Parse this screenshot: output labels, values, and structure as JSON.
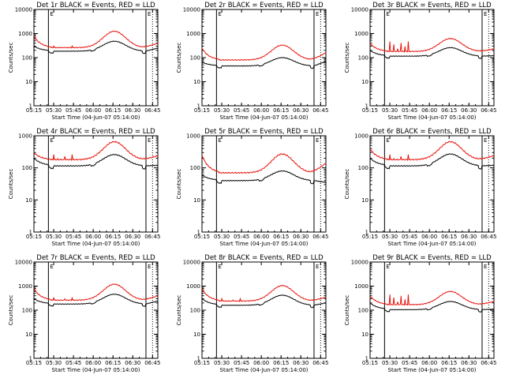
{
  "colors": {
    "events": "#000000",
    "lld": "#e8140c",
    "axes": "#000000",
    "background": "#ffffff"
  },
  "common": {
    "xlabel": "Start Time (04-Jun-07 05:14:00)",
    "ylabel": "Counts/sec",
    "x_tick_labels": [
      "05:15",
      "05:30",
      "05:45",
      "06:00",
      "06:15",
      "06:30",
      "06:45"
    ],
    "x_tick_minutes": [
      1,
      16,
      31,
      46,
      61,
      76,
      91
    ],
    "x_range_minutes": [
      1,
      95
    ],
    "y_scale": "log",
    "y_tick_labels": [
      "1",
      "10",
      "100",
      "1000",
      "10000"
    ],
    "y_tick_values": [
      1,
      10,
      100,
      1000,
      10000
    ],
    "markers_minutes": [
      12,
      86,
      91
    ],
    "marker_flag_label": "E"
  },
  "chart_data": [
    {
      "type": "line",
      "title": "Det 1r BLACK = Events, RED = LLD",
      "ylim": [
        1,
        10000
      ],
      "peak_lld": 1250,
      "base_lld": 260,
      "early_lld": 800,
      "peak_events": 480,
      "base_events": 185,
      "early_events": 300,
      "has_spikes": true,
      "spike_height": 300,
      "lld_end": 400,
      "events_end": 250
    },
    {
      "type": "line",
      "title": "Det 2r BLACK = Events, RED = LLD",
      "ylim": [
        1,
        10000
      ],
      "peak_lld": 330,
      "base_lld": 80,
      "early_lld": 250,
      "peak_events": 100,
      "base_events": 45,
      "early_events": 65,
      "has_spikes": false,
      "spike_height": 0,
      "lld_end": 160,
      "events_end": 70
    },
    {
      "type": "line",
      "title": "Det 3r BLACK = Events, RED = LLD",
      "ylim": [
        1,
        10000
      ],
      "peak_lld": 620,
      "base_lld": 180,
      "early_lld": 400,
      "peak_events": 260,
      "base_events": 115,
      "early_events": 200,
      "has_spikes": true,
      "spike_height": 470,
      "lld_end": 230,
      "events_end": 120
    },
    {
      "type": "line",
      "title": "Det 4r BLACK = Events, RED = LLD",
      "ylim": [
        1,
        1000
      ],
      "peak_lld": 650,
      "base_lld": 180,
      "early_lld": 300,
      "peak_events": 260,
      "base_events": 115,
      "early_events": 200,
      "has_spikes": true,
      "spike_height": 260,
      "lld_end": 240,
      "events_end": 120
    },
    {
      "type": "line",
      "title": "Det 5r BLACK = Events, RED = LLD",
      "ylim": [
        1,
        1000
      ],
      "peak_lld": 270,
      "base_lld": 70,
      "early_lld": 250,
      "peak_events": 80,
      "base_events": 40,
      "early_events": 60,
      "has_spikes": false,
      "spike_height": 0,
      "lld_end": 140,
      "events_end": 35
    },
    {
      "type": "line",
      "title": "Det 6r BLACK = Events, RED = LLD",
      "ylim": [
        1,
        1000
      ],
      "peak_lld": 650,
      "base_lld": 180,
      "early_lld": 400,
      "peak_events": 270,
      "base_events": 115,
      "early_events": 200,
      "has_spikes": true,
      "spike_height": 260,
      "lld_end": 240,
      "events_end": 120
    },
    {
      "type": "line",
      "title": "Det 7r BLACK = Events, RED = LLD",
      "ylim": [
        1,
        10000
      ],
      "peak_lld": 1200,
      "base_lld": 260,
      "early_lld": 800,
      "peak_events": 460,
      "base_events": 180,
      "early_events": 300,
      "has_spikes": true,
      "spike_height": 340,
      "lld_end": 400,
      "events_end": 240
    },
    {
      "type": "line",
      "title": "Det 8r BLACK = Events, RED = LLD",
      "ylim": [
        1,
        10000
      ],
      "peak_lld": 1050,
      "base_lld": 240,
      "early_lld": 800,
      "peak_events": 420,
      "base_events": 160,
      "early_events": 300,
      "has_spikes": true,
      "spike_height": 300,
      "lld_end": 350,
      "events_end": 200
    },
    {
      "type": "line",
      "title": "Det 9r BLACK = Events, RED = LLD",
      "ylim": [
        1,
        10000
      ],
      "peak_lld": 600,
      "base_lld": 170,
      "early_lld": 400,
      "peak_events": 230,
      "base_events": 105,
      "early_events": 200,
      "has_spikes": true,
      "spike_height": 450,
      "lld_end": 230,
      "events_end": 110
    }
  ]
}
